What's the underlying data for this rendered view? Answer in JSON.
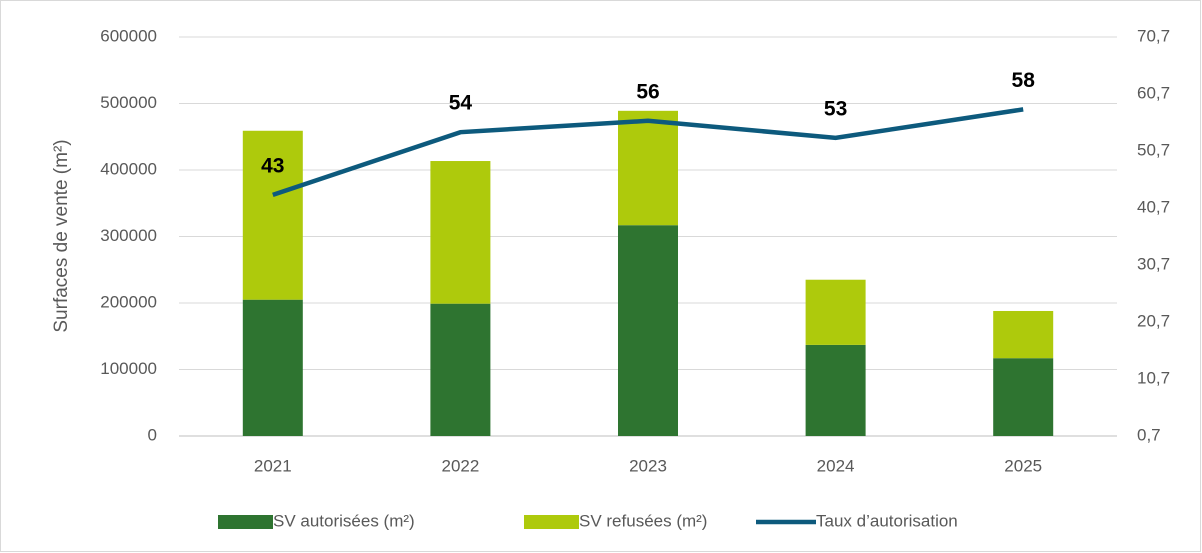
{
  "chart_data": {
    "type": "bar",
    "y_label": "Surfaces de vente (m²)",
    "categories": [
      "2021",
      "2022",
      "2023",
      "2024",
      "2025"
    ],
    "series": [
      {
        "name": "SV autorisées (m²)",
        "type": "bar",
        "color": "#2e7430",
        "values": [
          205000,
          199000,
          317000,
          137000,
          117000
        ]
      },
      {
        "name": "SV refusées (m²)",
        "type": "bar",
        "color": "#aeca0c",
        "values": [
          254000,
          214500,
          172000,
          98000,
          71000
        ]
      },
      {
        "name": "Taux d’autorisation",
        "type": "line",
        "axis": "y2",
        "color": "#0d5a7d",
        "values": [
          43,
          54,
          56,
          53,
          58
        ]
      }
    ],
    "stacked": true,
    "ylim": [
      0,
      600000
    ],
    "yticks": [
      0,
      100000,
      200000,
      300000,
      400000,
      500000,
      600000
    ],
    "y2lim": [
      0.7,
      70.7
    ],
    "y2ticks": [
      {
        "value": 0.7,
        "label": "0,7"
      },
      {
        "value": 10.7,
        "label": "10,7"
      },
      {
        "value": 20.7,
        "label": "20,7"
      },
      {
        "value": 30.7,
        "label": "30,7"
      },
      {
        "value": 40.7,
        "label": "40,7"
      },
      {
        "value": 50.7,
        "label": "50,7"
      },
      {
        "value": 60.7,
        "label": "60,7"
      },
      {
        "value": 70.7,
        "label": "70,7"
      }
    ],
    "grid": true,
    "legend": "bottom"
  }
}
